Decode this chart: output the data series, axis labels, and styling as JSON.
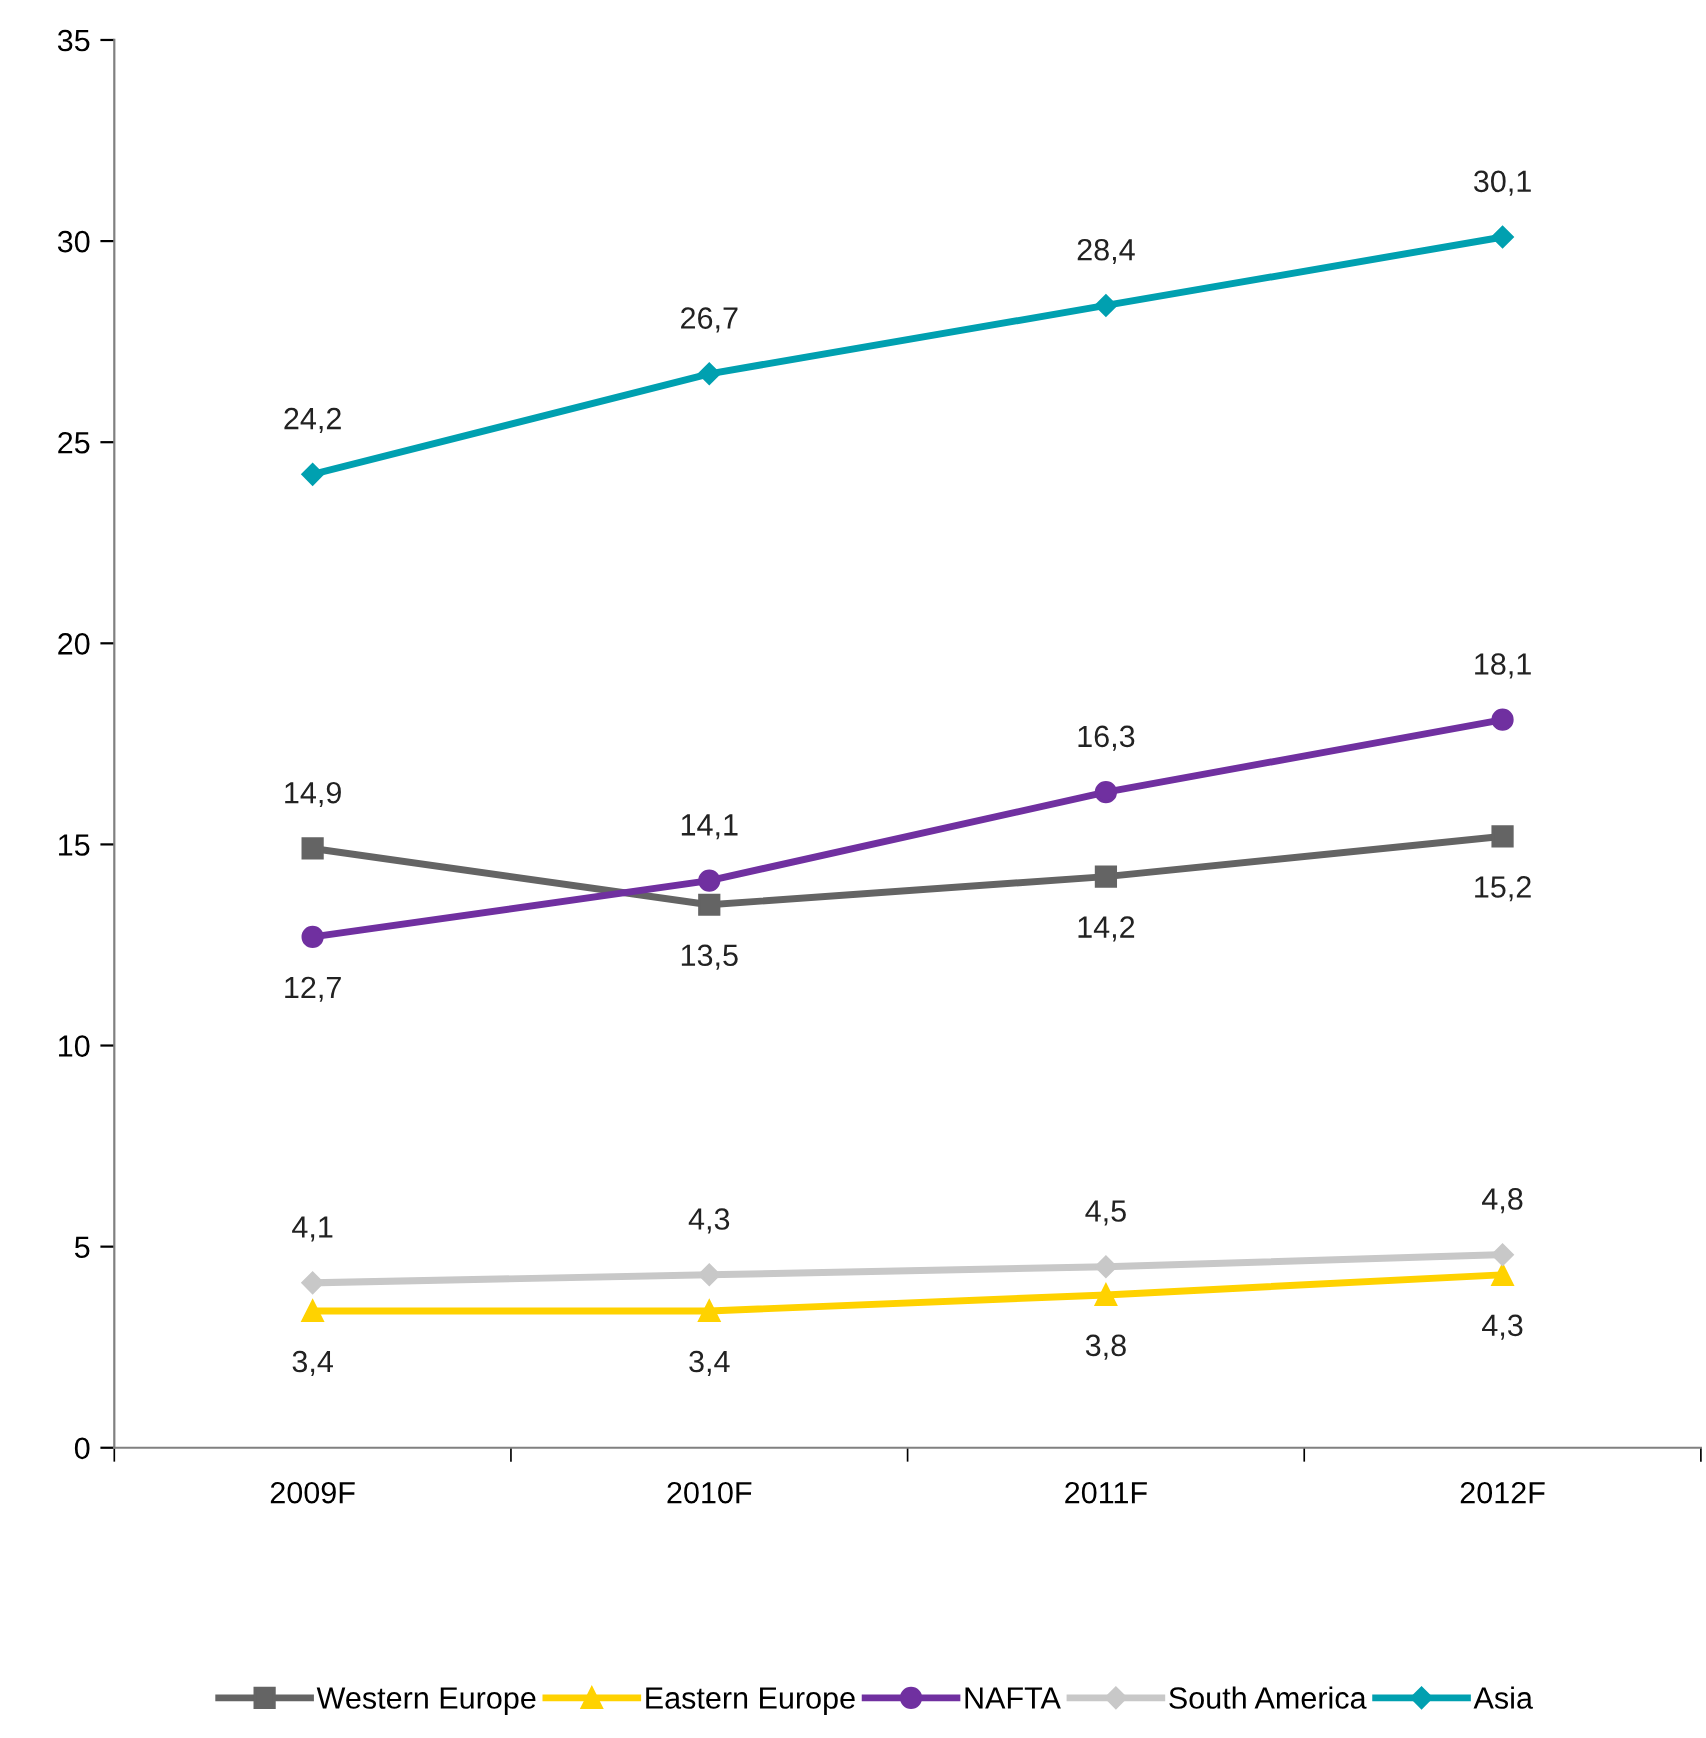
{
  "chart_data": {
    "type": "line",
    "categories": [
      "2009F",
      "2010F",
      "2011F",
      "2012F"
    ],
    "series": [
      {
        "name": "Western Europe",
        "color": "#646464",
        "marker": "square",
        "values": [
          14.9,
          13.5,
          14.2,
          15.2
        ],
        "value_labels": [
          "14,9",
          "13,5",
          "14,2",
          "15,2"
        ]
      },
      {
        "name": "Eastern Europe",
        "color": "#ffd200",
        "marker": "triangle",
        "values": [
          3.4,
          3.4,
          3.8,
          4.3
        ],
        "value_labels": [
          "3,4",
          "3,4",
          "3,8",
          "4,3"
        ]
      },
      {
        "name": "NAFTA",
        "color": "#7030a0",
        "marker": "circle",
        "values": [
          12.7,
          14.1,
          16.3,
          18.1
        ],
        "value_labels": [
          "12,7",
          "14,1",
          "16,3",
          "18,1"
        ]
      },
      {
        "name": "South America",
        "color": "#c8c8c8",
        "marker": "diamond",
        "values": [
          4.1,
          4.3,
          4.5,
          4.8
        ],
        "value_labels": [
          "4,1",
          "4,3",
          "4,5",
          "4,8"
        ]
      },
      {
        "name": "Asia",
        "color": "#00a0b0",
        "marker": "diamond",
        "values": [
          24.2,
          26.7,
          28.4,
          30.1
        ],
        "value_labels": [
          "24,2",
          "26,7",
          "28,4",
          "30,1"
        ]
      }
    ],
    "ylim": [
      0,
      35
    ],
    "yticks": [
      0,
      5,
      10,
      15,
      20,
      25,
      30,
      35
    ],
    "grid": false,
    "legend": "bottom",
    "line_style": "solid"
  }
}
